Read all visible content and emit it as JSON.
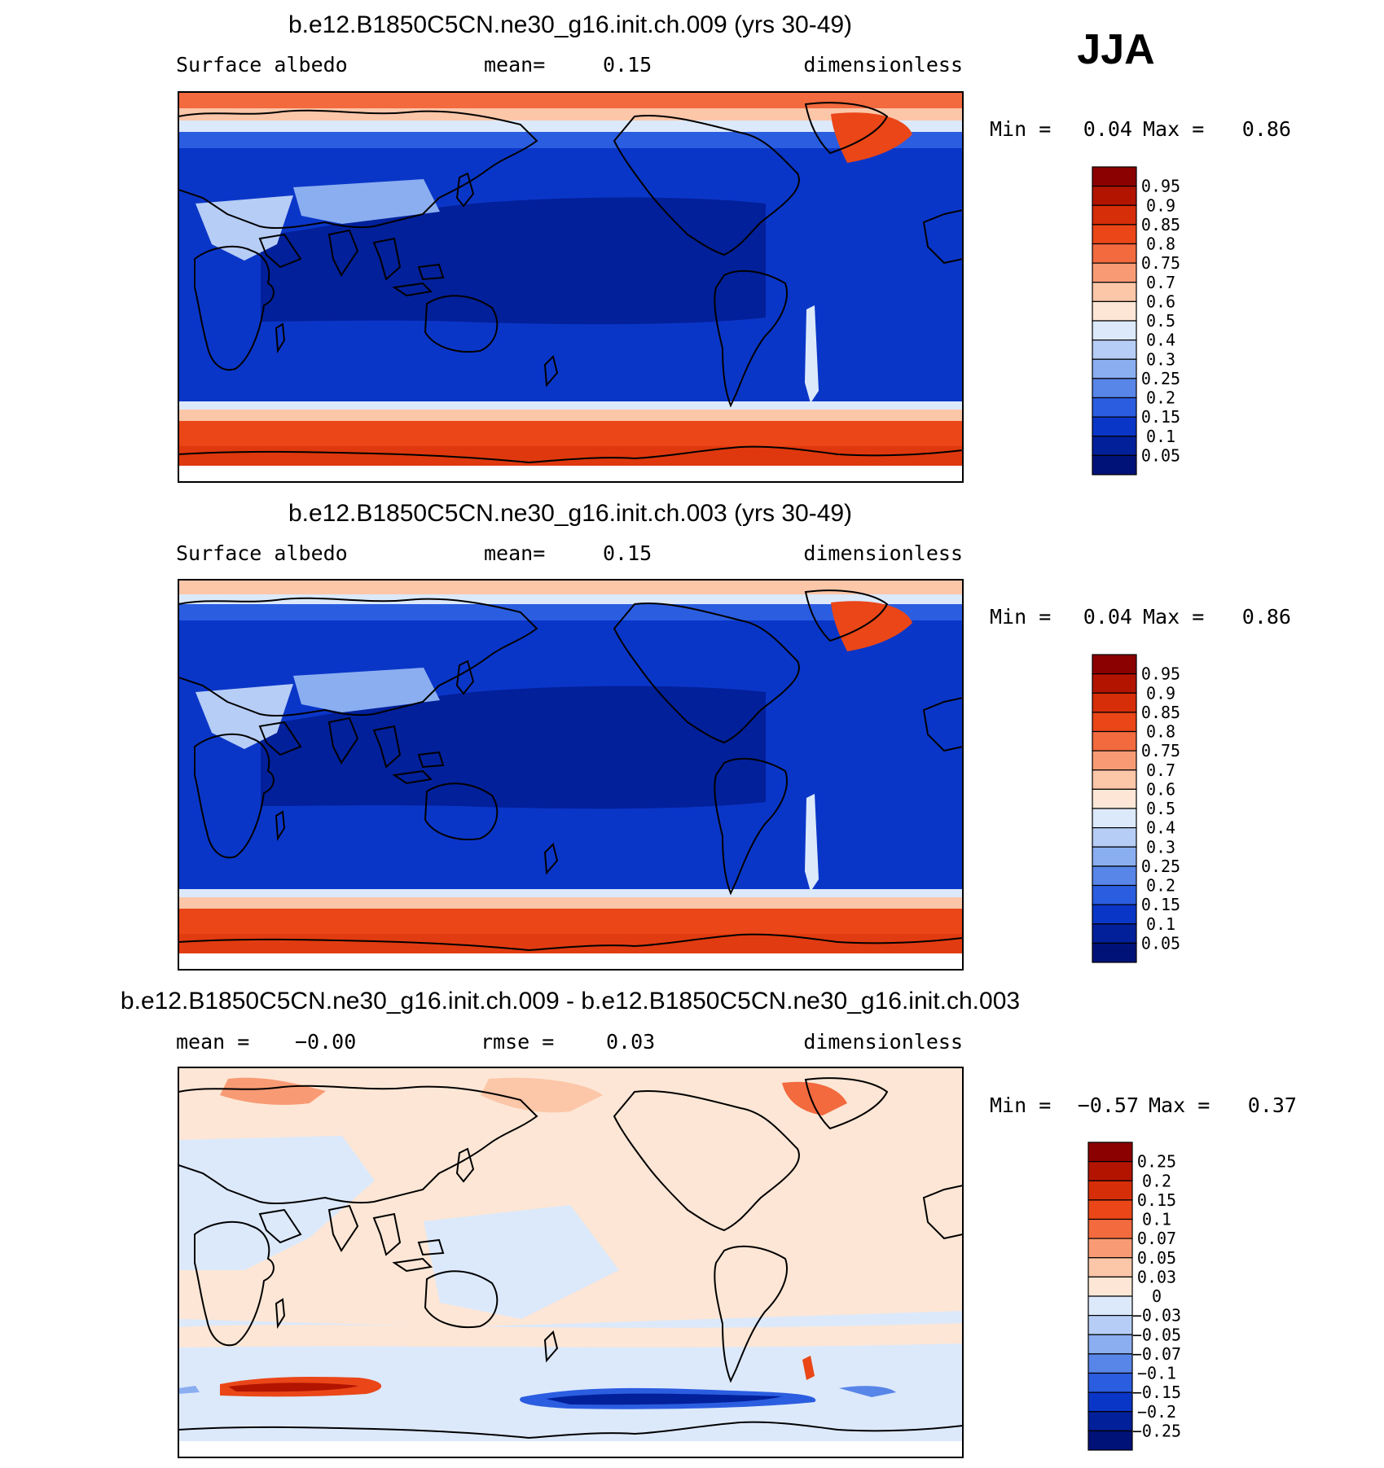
{
  "season": "JJA",
  "chart_data": [
    {
      "type": "heatmap",
      "title": "b.e12.B1850C5CN.ne30_g16.init.ch.009 (yrs 30-49)",
      "left_label": "Surface albedo",
      "mean_label": "mean=",
      "mean_value": "0.15",
      "units": "dimensionless",
      "min_label": "Min =",
      "min_value": "0.04",
      "max_label": "Max =",
      "max_value": "0.86",
      "colorbar_levels": [
        "0.95",
        "0.9",
        "0.85",
        "0.8",
        "0.75",
        "0.7",
        "0.6",
        "0.5",
        "0.4",
        "0.3",
        "0.25",
        "0.2",
        "0.15",
        "0.1",
        "0.05"
      ],
      "colorbar_colors": [
        "#8b0000",
        "#b21400",
        "#d62e08",
        "#ea4618",
        "#f26a3e",
        "#f89b74",
        "#fcc6a8",
        "#fde6d5",
        "#dce9fb",
        "#b6cdf6",
        "#8aaef0",
        "#5885e8",
        "#2b5de0",
        "#0a36c8",
        "#02209a",
        "#001278"
      ]
    },
    {
      "type": "heatmap",
      "title": "b.e12.B1850C5CN.ne30_g16.init.ch.003 (yrs 30-49)",
      "left_label": "Surface albedo",
      "mean_label": "mean=",
      "mean_value": "0.15",
      "units": "dimensionless",
      "min_label": "Min =",
      "min_value": "0.04",
      "max_label": "Max =",
      "max_value": "0.86",
      "colorbar_levels": [
        "0.95",
        "0.9",
        "0.85",
        "0.8",
        "0.75",
        "0.7",
        "0.6",
        "0.5",
        "0.4",
        "0.3",
        "0.25",
        "0.2",
        "0.15",
        "0.1",
        "0.05"
      ],
      "colorbar_colors": [
        "#8b0000",
        "#b21400",
        "#d62e08",
        "#ea4618",
        "#f26a3e",
        "#f89b74",
        "#fcc6a8",
        "#fde6d5",
        "#dce9fb",
        "#b6cdf6",
        "#8aaef0",
        "#5885e8",
        "#2b5de0",
        "#0a36c8",
        "#02209a",
        "#001278"
      ]
    },
    {
      "type": "heatmap",
      "title": "b.e12.B1850C5CN.ne30_g16.init.ch.009 - b.e12.B1850C5CN.ne30_g16.init.ch.003",
      "left_label": "mean =",
      "left_value": "−0.00",
      "mean_label": "rmse =",
      "mean_value": "0.03",
      "units": "dimensionless",
      "min_label": "Min =",
      "min_value": "−0.57",
      "max_label": "Max =",
      "max_value": "0.37",
      "colorbar_levels": [
        "0.25",
        "0.2",
        "0.15",
        "0.1",
        "0.07",
        "0.05",
        "0.03",
        "0",
        "−0.03",
        "−0.05",
        "−0.07",
        "−0.1",
        "−0.15",
        "−0.2",
        "−0.25"
      ],
      "colorbar_colors": [
        "#8b0000",
        "#b21400",
        "#d62e08",
        "#ea4618",
        "#f26a3e",
        "#f89b74",
        "#fcc6a8",
        "#fde6d5",
        "#dce9fb",
        "#b6cdf6",
        "#8aaef0",
        "#5885e8",
        "#2b5de0",
        "#0a36c8",
        "#02209a",
        "#001278"
      ]
    }
  ]
}
